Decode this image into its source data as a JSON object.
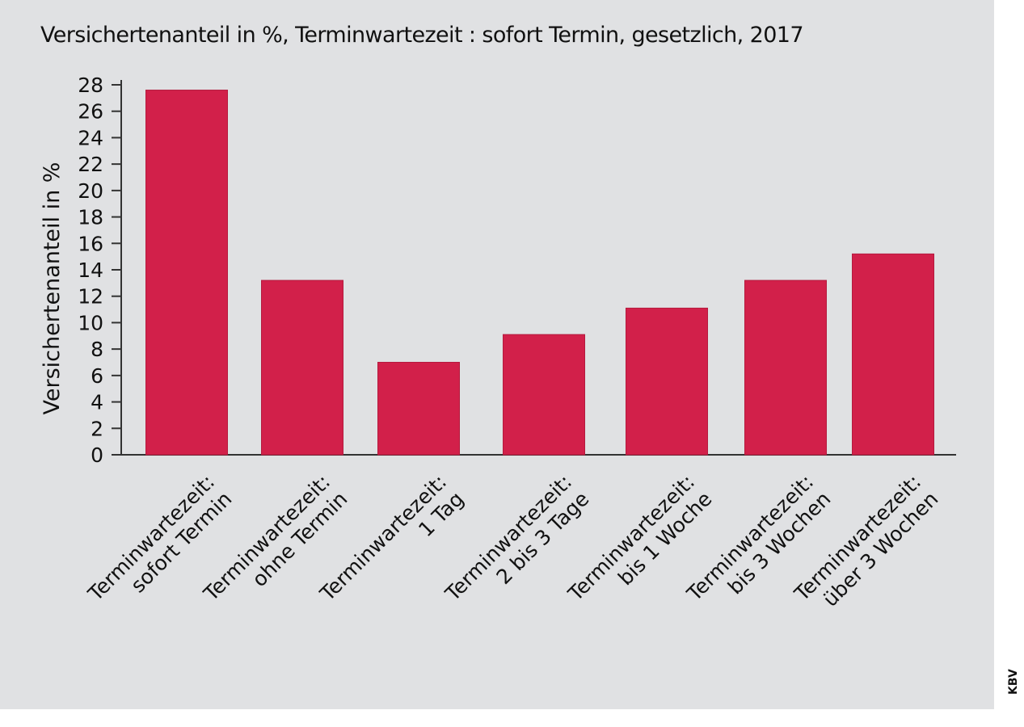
{
  "chart_data": {
    "type": "bar",
    "title": "Versichertenanteil in %, Terminwartezeit : sofort Termin, gesetzlich, 2017",
    "xlabel": "",
    "ylabel": "Versichertenanteil in %",
    "ylim": [
      0,
      28
    ],
    "yticks": [
      0,
      2,
      4,
      6,
      8,
      10,
      12,
      14,
      16,
      18,
      20,
      22,
      24,
      26,
      28
    ],
    "grid": false,
    "bar_color": "#d2204a",
    "categories": [
      [
        "Terminwartezeit:",
        "sofort Termin"
      ],
      [
        "Terminwartezeit:",
        "ohne Termin"
      ],
      [
        "Terminwartezeit:",
        "1 Tag"
      ],
      [
        "Terminwartezeit:",
        "2 bis 3 Tage"
      ],
      [
        "Terminwartezeit:",
        "bis 1 Woche"
      ],
      [
        "Terminwartezeit:",
        "bis 3 Wochen"
      ],
      [
        "Terminwartezeit:",
        "über 3 Wochen"
      ]
    ],
    "values": [
      27.6,
      13.2,
      7.0,
      9.1,
      11.1,
      13.2,
      15.2
    ]
  },
  "source": "KBV"
}
